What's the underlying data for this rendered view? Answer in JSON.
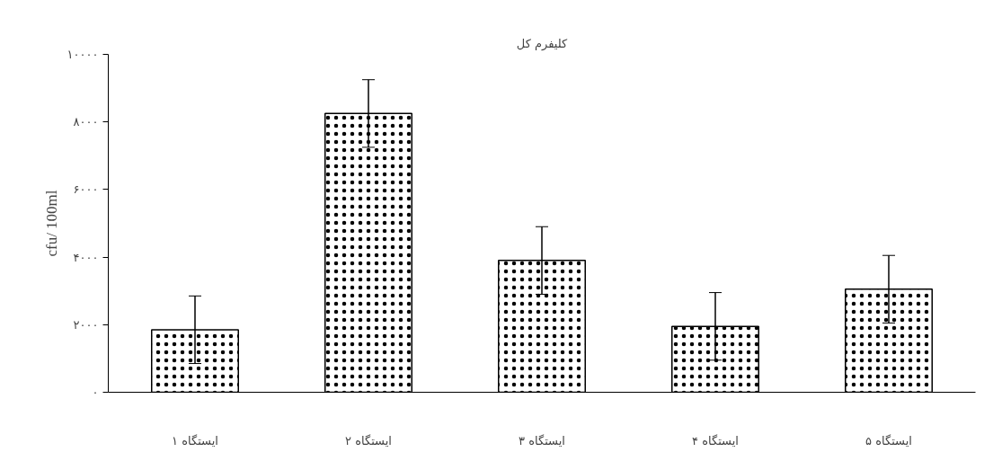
{
  "chart_data": {
    "type": "bar",
    "title": "کلیفرم کل",
    "ylabel": "cfu/ 100ml",
    "categories": [
      "ایستگاه ۱",
      "ایستگاه ۲",
      "ایستگاه ۳",
      "ایستگاه ۴",
      "ایستگاه ۵"
    ],
    "values": [
      1850,
      8250,
      3900,
      1950,
      3050
    ],
    "errors": [
      1000,
      1000,
      1000,
      1000,
      1000
    ],
    "color": "#ffffff",
    "ylim": [
      0,
      10000
    ],
    "yticks": [
      {
        "value": 0,
        "label": "۰"
      },
      {
        "value": 2000,
        "label": "۲۰۰۰"
      },
      {
        "value": 4000,
        "label": "۴۰۰۰"
      },
      {
        "value": 6000,
        "label": "۶۰۰۰"
      },
      {
        "value": 8000,
        "label": "۸۰۰۰"
      },
      {
        "value": 10000,
        "label": "۱۰۰۰۰"
      }
    ],
    "grid": false
  }
}
